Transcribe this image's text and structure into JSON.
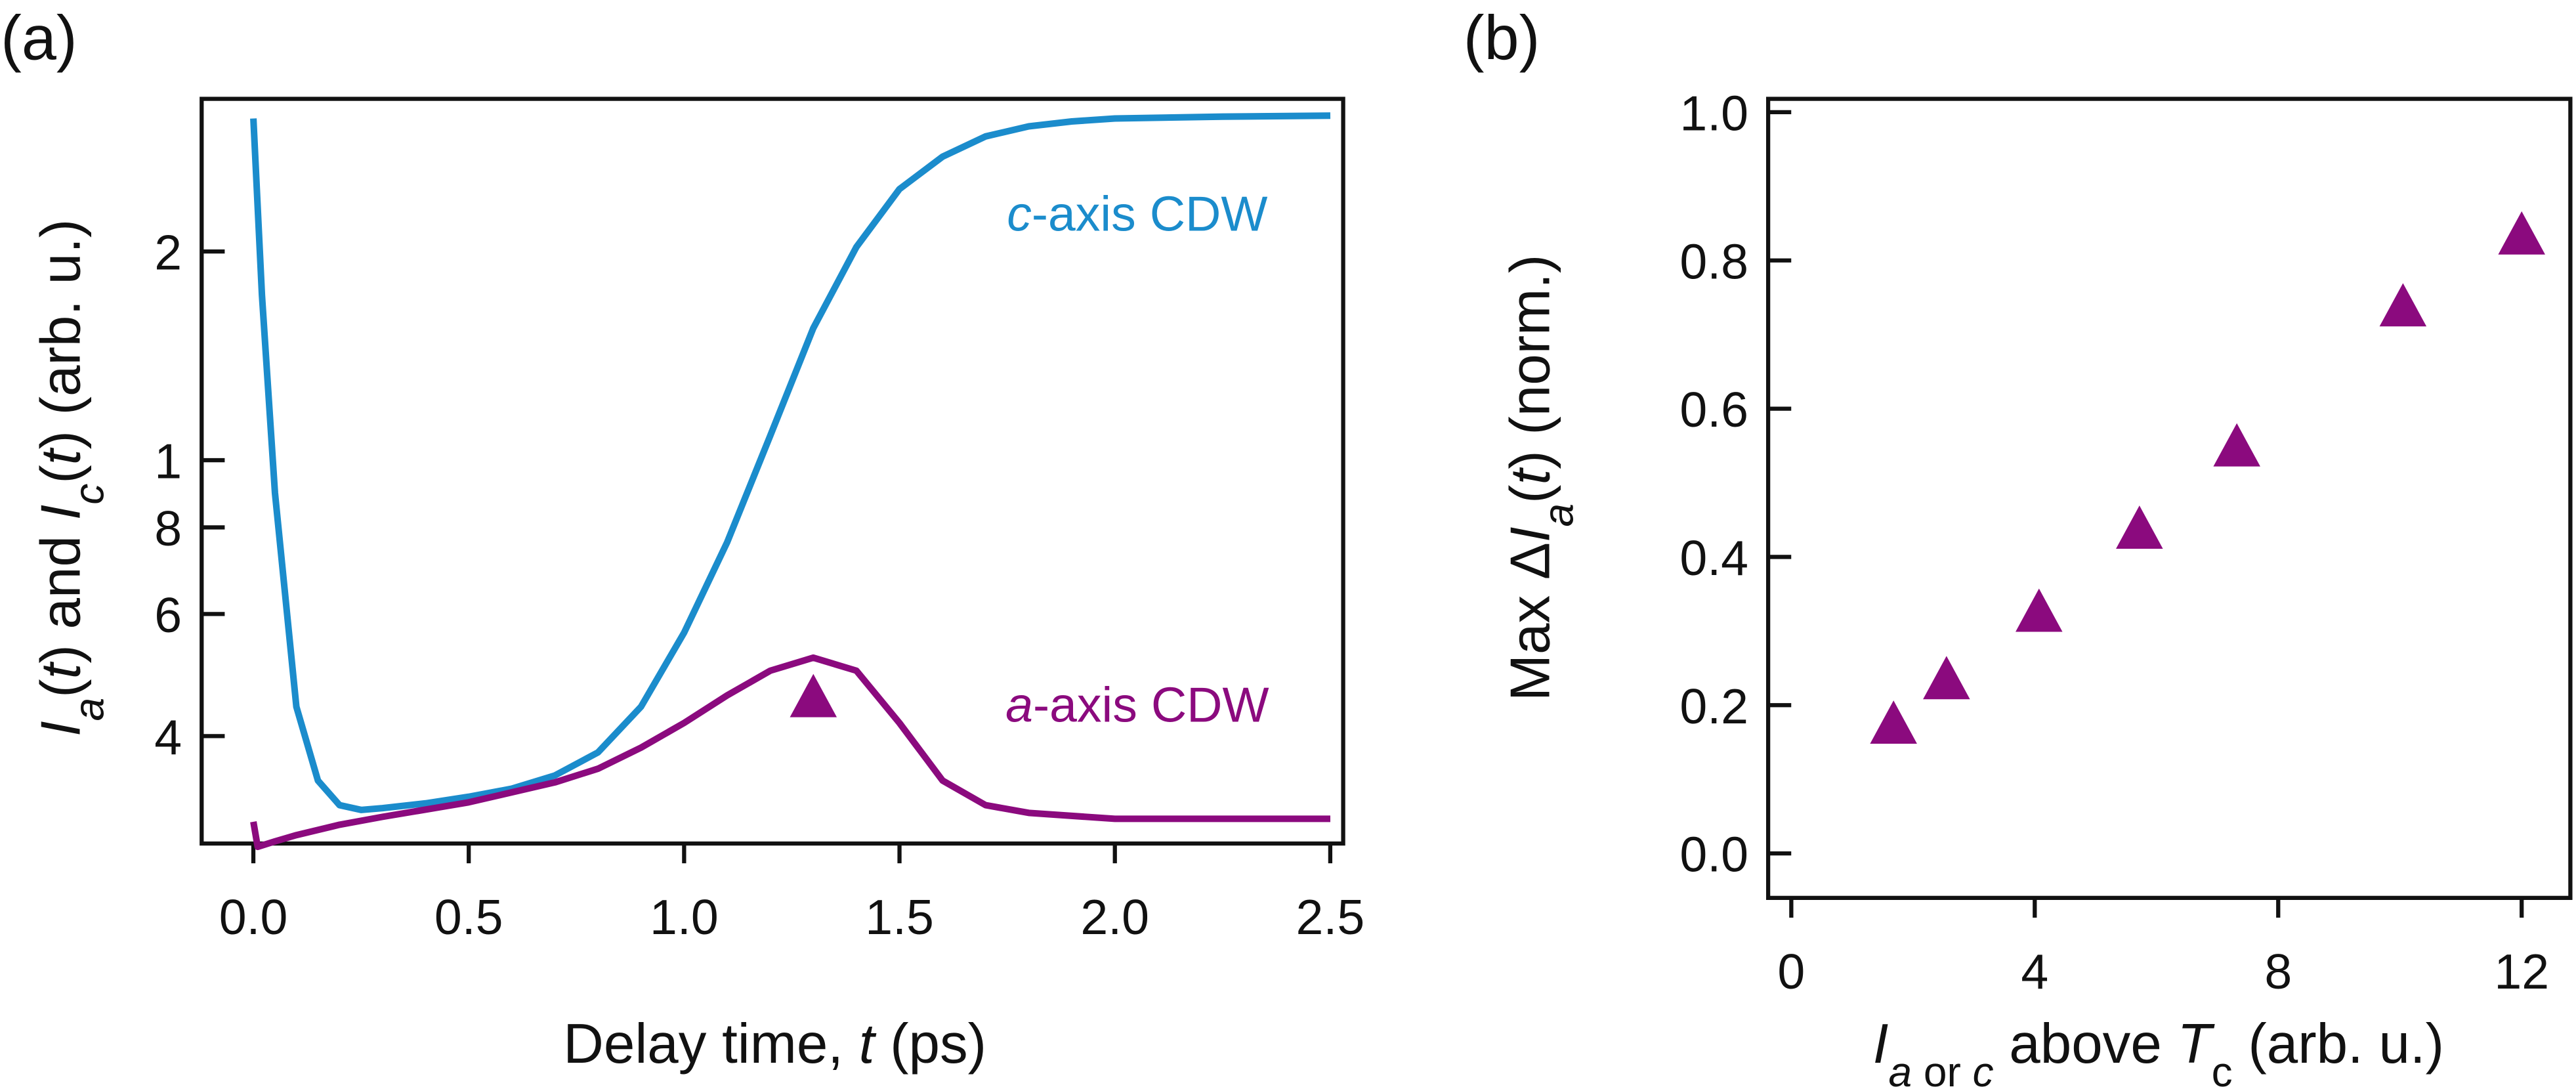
{
  "chart_data": [
    {
      "type": "line",
      "panel": "(a)",
      "xlabel": [
        [
          "Delay time, ",
          ""
        ],
        [
          "t",
          "i"
        ],
        [
          " (ps)",
          ""
        ]
      ],
      "ylabel": [
        [
          "I",
          "i"
        ],
        [
          "a",
          "is"
        ],
        [
          "(",
          ""
        ],
        [
          "t",
          "i"
        ],
        [
          ") and ",
          ""
        ],
        [
          "I",
          "i"
        ],
        [
          "c",
          "is"
        ],
        [
          "(",
          ""
        ],
        [
          "t",
          "i"
        ],
        [
          ") (arb. u.)",
          ""
        ]
      ],
      "xlim": [
        -0.12,
        2.53
      ],
      "ylim": [
        0.28,
        3.32
      ],
      "ylog": true,
      "xticks": [
        {
          "value": 0,
          "label": "0.0"
        },
        0.5,
        {
          "value": 1,
          "label": "1.0"
        },
        1.5,
        {
          "value": 2,
          "label": "2.0"
        },
        2.5
      ],
      "yticks": [
        {
          "value": 0.4,
          "label": "4"
        },
        {
          "value": 0.6,
          "label": "6"
        },
        {
          "value": 0.8,
          "label": "8"
        },
        1,
        2
      ],
      "series": [
        {
          "color": "#1b8ccc",
          "mode": "line",
          "x": [
            0,
            0.02,
            0.05,
            0.1,
            0.15,
            0.2,
            0.25,
            0.3,
            0.4,
            0.5,
            0.6,
            0.7,
            0.8,
            0.9,
            1.0,
            1.1,
            1.2,
            1.3,
            1.4,
            1.5,
            1.6,
            1.7,
            1.8,
            1.9,
            2.0,
            2.25,
            2.5
          ],
          "values": [
            3.11,
            1.73,
            0.897,
            0.441,
            0.345,
            0.318,
            0.313,
            0.315,
            0.32,
            0.327,
            0.336,
            0.351,
            0.379,
            0.441,
            0.564,
            0.761,
            1.085,
            1.55,
            2.03,
            2.46,
            2.74,
            2.93,
            3.03,
            3.08,
            3.11,
            3.13,
            3.14
          ]
        },
        {
          "color": "#8b0a7e",
          "mode": "line",
          "x": [
            0,
            0.01,
            0.05,
            0.1,
            0.2,
            0.3,
            0.5,
            0.7,
            0.8,
            0.9,
            1.0,
            1.1,
            1.2,
            1.3,
            1.4,
            1.5,
            1.6,
            1.7,
            1.8,
            2.0,
            2.5
          ],
          "values": [
            0.301,
            0.277,
            0.282,
            0.288,
            0.298,
            0.306,
            0.321,
            0.343,
            0.359,
            0.385,
            0.418,
            0.458,
            0.497,
            0.519,
            0.497,
            0.418,
            0.345,
            0.318,
            0.31,
            0.304,
            0.304
          ]
        },
        {
          "color": "#8b0a7e",
          "mode": "marker",
          "x": [
            1.3
          ],
          "values": [
            0.453
          ]
        }
      ],
      "annotations": [
        {
          "text": [
            [
              "c",
              "i"
            ],
            [
              "-axis CDW",
              ""
            ]
          ],
          "color": "#1b8ccc"
        },
        {
          "text": [
            [
              "a",
              "i"
            ],
            [
              "-axis CDW",
              ""
            ]
          ],
          "color": "#8b0a7e"
        }
      ]
    },
    {
      "type": "scatter",
      "panel": "(b)",
      "xlabel": [
        [
          "I",
          "i"
        ],
        [
          "a",
          "is"
        ],
        [
          " or ",
          "s"
        ],
        [
          "c",
          "is"
        ],
        [
          " above ",
          ""
        ],
        [
          "T",
          "i"
        ],
        [
          "c",
          "s"
        ],
        [
          " (arb. u.)",
          ""
        ]
      ],
      "ylabel": [
        [
          "Max Δ",
          ""
        ],
        [
          "I",
          "i"
        ],
        [
          "a",
          "is"
        ],
        [
          "(",
          ""
        ],
        [
          "t",
          "i"
        ],
        [
          ") (norm.)",
          ""
        ]
      ],
      "xlim": [
        -0.38,
        12.8
      ],
      "ylim": [
        -0.06,
        1.018
      ],
      "xticks": [
        0,
        4,
        8,
        12
      ],
      "yticks": [
        {
          "value": 0,
          "label": "0.0"
        },
        0.2,
        0.4,
        0.6,
        0.8,
        {
          "value": 1,
          "label": "1.0"
        }
      ],
      "series": [
        {
          "color": "#8b0a7e",
          "x": [
            1.68,
            2.55,
            4.07,
            5.72,
            7.32,
            10.05,
            12.0
          ],
          "values": [
            0.173,
            0.233,
            0.324,
            0.436,
            0.547,
            0.736,
            0.833
          ]
        }
      ]
    }
  ]
}
